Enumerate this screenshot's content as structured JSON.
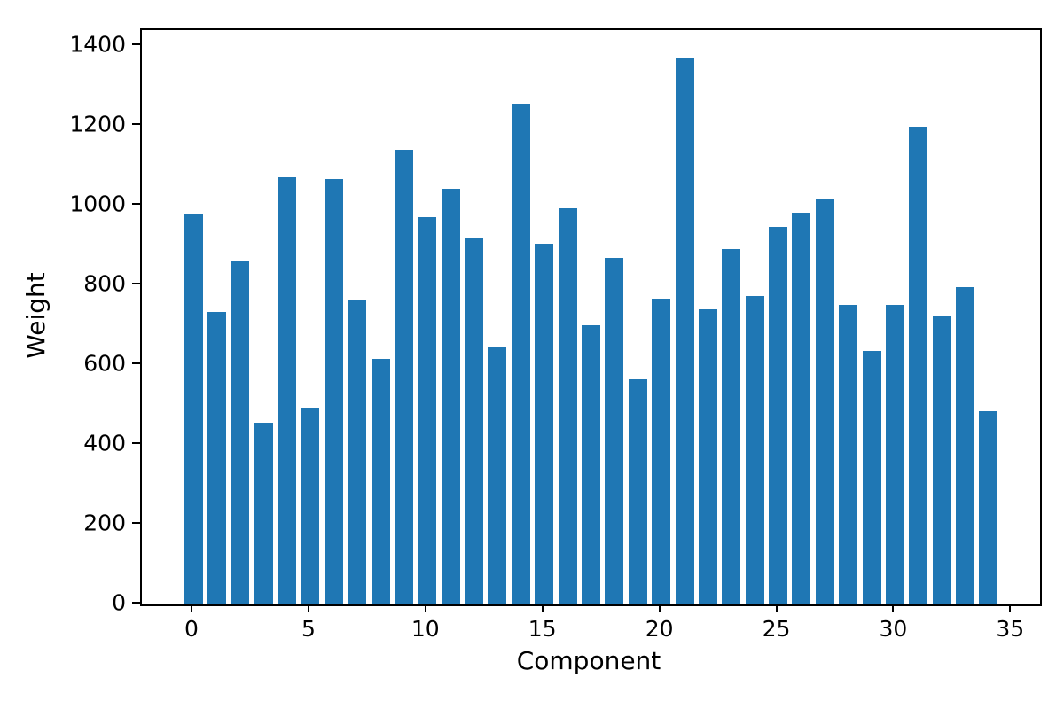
{
  "chart_data": {
    "type": "bar",
    "title": "",
    "xlabel": "Component",
    "ylabel": "Weight",
    "categories": [
      0,
      1,
      2,
      3,
      4,
      5,
      6,
      7,
      8,
      9,
      10,
      11,
      12,
      13,
      14,
      15,
      16,
      17,
      18,
      19,
      20,
      21,
      22,
      23,
      24,
      25,
      26,
      27,
      28,
      29,
      30,
      31,
      32,
      33,
      34
    ],
    "values": [
      980,
      735,
      862,
      455,
      1071,
      493,
      1068,
      763,
      615,
      1141,
      972,
      1044,
      919,
      646,
      1256,
      906,
      994,
      701,
      870,
      565,
      768,
      1372,
      741,
      892,
      774,
      947,
      984,
      1016,
      752,
      637,
      752,
      1199,
      723,
      796,
      485
    ],
    "bar_color": "#1f77b4",
    "bar_width": 0.8,
    "xlim": [
      -2.2,
      36.2
    ],
    "ylim": [
      0,
      1441
    ],
    "xticks": [
      0,
      5,
      10,
      15,
      20,
      25,
      30,
      35
    ],
    "yticks": [
      0,
      200,
      400,
      600,
      800,
      1000,
      1200,
      1400
    ],
    "grid": false,
    "legend": "none"
  }
}
